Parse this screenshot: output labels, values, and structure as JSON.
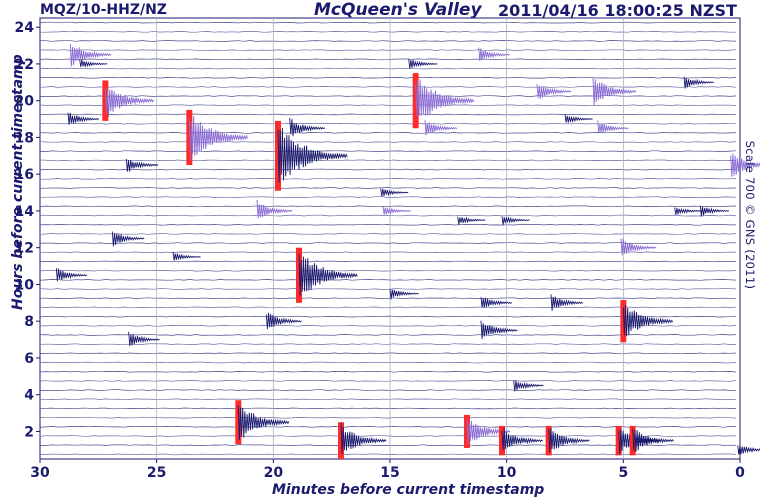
{
  "header": {
    "station": "MQZ/10-HHZ/NZ",
    "title": "McQueen's Valley",
    "timestamp": "2011/04/16 18:00:25 NZST"
  },
  "copyright": "Scale 700 © GNS (2011)",
  "chart_data": {
    "type": "seismogram",
    "xlabel": "Minutes before current timestamp",
    "ylabel": "Hours before current timestamp",
    "xlim": [
      30,
      0
    ],
    "ylim": [
      0.5,
      24.5
    ],
    "xticks": [
      30,
      25,
      20,
      15,
      10,
      5,
      0
    ],
    "yticks": [
      2,
      4,
      6,
      8,
      10,
      12,
      14,
      16,
      18,
      20,
      22,
      24
    ],
    "hour_lines": 48,
    "grid": true,
    "colors": {
      "trace": "#1a1a6e",
      "trace_alt": "#8a6bd4",
      "clip": "#ff2a2a",
      "grid": "#9fb8c4",
      "text": "#1a1a6e"
    },
    "events": [
      {
        "minute": 28.7,
        "hour": 22.5,
        "amp": 1.6,
        "color": "purple"
      },
      {
        "minute": 27.2,
        "hour": 20.0,
        "amp": 2.2,
        "color": "purple",
        "clipped": true
      },
      {
        "minute": 23.6,
        "hour": 18.0,
        "amp": 3.0,
        "color": "purple",
        "clipped": true
      },
      {
        "minute": 19.8,
        "hour": 17.0,
        "amp": 3.8,
        "color": "navy",
        "clipped": true
      },
      {
        "minute": 13.9,
        "hour": 20.0,
        "amp": 3.0,
        "color": "purple",
        "clipped": true
      },
      {
        "minute": 18.9,
        "hour": 10.5,
        "amp": 3.0,
        "color": "navy",
        "clipped": true
      },
      {
        "minute": 5.0,
        "hour": 8.0,
        "amp": 2.3,
        "color": "navy",
        "clipped": true
      },
      {
        "minute": 21.5,
        "hour": 2.5,
        "amp": 2.4,
        "color": "navy",
        "clipped": true
      },
      {
        "minute": 17.1,
        "hour": 1.5,
        "amp": 2.0,
        "color": "navy",
        "clipped": true
      },
      {
        "minute": 11.7,
        "hour": 2.0,
        "amp": 1.8,
        "color": "purple",
        "clipped": true
      },
      {
        "minute": 10.2,
        "hour": 1.5,
        "amp": 1.6,
        "color": "navy",
        "clipped": true
      },
      {
        "minute": 8.2,
        "hour": 1.5,
        "amp": 1.6,
        "color": "navy",
        "clipped": true
      },
      {
        "minute": 5.2,
        "hour": 1.5,
        "amp": 1.6,
        "color": "navy",
        "clipped": true
      },
      {
        "minute": 4.6,
        "hour": 1.5,
        "amp": 1.6,
        "color": "navy",
        "clipped": true
      },
      {
        "minute": 26.3,
        "hour": 16.5,
        "amp": 1.0,
        "color": "navy"
      },
      {
        "minute": 28.8,
        "hour": 19.0,
        "amp": 0.9,
        "color": "navy"
      },
      {
        "minute": 28.3,
        "hour": 22.0,
        "amp": 0.6,
        "color": "navy"
      },
      {
        "minute": 29.3,
        "hour": 10.5,
        "amp": 0.9,
        "color": "navy"
      },
      {
        "minute": 26.9,
        "hour": 12.5,
        "amp": 1.0,
        "color": "navy"
      },
      {
        "minute": 24.3,
        "hour": 11.5,
        "amp": 0.6,
        "color": "navy"
      },
      {
        "minute": 26.2,
        "hour": 7.0,
        "amp": 0.9,
        "color": "navy"
      },
      {
        "minute": 20.3,
        "hour": 8.0,
        "amp": 1.2,
        "color": "navy"
      },
      {
        "minute": 20.7,
        "hour": 14.0,
        "amp": 1.2,
        "color": "purple"
      },
      {
        "minute": 19.3,
        "hour": 18.5,
        "amp": 1.2,
        "color": "navy"
      },
      {
        "minute": 15.0,
        "hour": 9.5,
        "amp": 0.7,
        "color": "navy"
      },
      {
        "minute": 15.4,
        "hour": 15.0,
        "amp": 0.6,
        "color": "navy"
      },
      {
        "minute": 13.5,
        "hour": 18.5,
        "amp": 1.0,
        "color": "purple"
      },
      {
        "minute": 14.2,
        "hour": 22.0,
        "amp": 0.7,
        "color": "navy"
      },
      {
        "minute": 11.2,
        "hour": 22.5,
        "amp": 0.9,
        "color": "purple"
      },
      {
        "minute": 11.1,
        "hour": 7.5,
        "amp": 1.3,
        "color": "navy"
      },
      {
        "minute": 11.1,
        "hour": 9.0,
        "amp": 0.9,
        "color": "navy"
      },
      {
        "minute": 9.7,
        "hour": 4.5,
        "amp": 0.8,
        "color": "navy"
      },
      {
        "minute": 10.2,
        "hour": 13.5,
        "amp": 0.6,
        "color": "navy"
      },
      {
        "minute": 8.7,
        "hour": 20.5,
        "amp": 1.1,
        "color": "purple"
      },
      {
        "minute": 7.5,
        "hour": 19.0,
        "amp": 0.6,
        "color": "navy"
      },
      {
        "minute": 6.3,
        "hour": 20.5,
        "amp": 1.8,
        "color": "purple"
      },
      {
        "minute": 6.1,
        "hour": 18.5,
        "amp": 0.9,
        "color": "purple"
      },
      {
        "minute": 5.1,
        "hour": 12.0,
        "amp": 1.2,
        "color": "purple"
      },
      {
        "minute": 2.4,
        "hour": 21.0,
        "amp": 0.8,
        "color": "navy"
      },
      {
        "minute": 0.4,
        "hour": 16.5,
        "amp": 1.6,
        "color": "purple"
      },
      {
        "minute": 2.8,
        "hour": 14.0,
        "amp": 0.6,
        "color": "navy"
      },
      {
        "minute": 1.7,
        "hour": 14.0,
        "amp": 0.7,
        "color": "navy"
      },
      {
        "minute": 0.1,
        "hour": 1.0,
        "amp": 0.8,
        "color": "navy"
      },
      {
        "minute": 12.1,
        "hour": 13.5,
        "amp": 0.6,
        "color": "navy"
      },
      {
        "minute": 8.1,
        "hour": 9.0,
        "amp": 1.0,
        "color": "navy"
      },
      {
        "minute": 15.3,
        "hour": 14.0,
        "amp": 0.6,
        "color": "purple"
      }
    ]
  }
}
